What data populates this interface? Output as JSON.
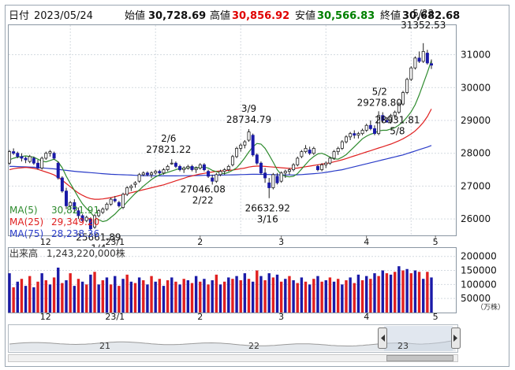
{
  "header": {
    "date_label": "日付",
    "date": "2023/05/24",
    "open_label": "始値",
    "open": "30,728.69",
    "high_label": "高値",
    "high": "30,856.92",
    "low_label": "安値",
    "low": "30,566.83",
    "close_label": "終値",
    "close": "30,682.68"
  },
  "colors": {
    "up_candle": "#ffffff",
    "down_candle": "#1a1aa8",
    "ma5": "#2e8b2e",
    "ma25": "#e02020",
    "ma75": "#2a3cc8",
    "vol_red": "#e02020",
    "vol_blue": "#1a1aa8",
    "high_value": "#e00000",
    "low_value": "#008000"
  },
  "legend": [
    {
      "label": "MA(5)",
      "value": "30,821.91",
      "color": "#2e8b2e"
    },
    {
      "label": "MA(25)",
      "value": "29,349.20",
      "color": "#e02020"
    },
    {
      "label": "MA(75)",
      "value": "28,238.36",
      "color": "#2a3cc8"
    }
  ],
  "volume_panel": {
    "title": "出来高",
    "value": "1,243,220,000株",
    "unit": "（万株）",
    "ticks": [
      "200000",
      "150000",
      "100000",
      "50000"
    ]
  },
  "x_axis_labels": [
    "12",
    "23/1",
    "2",
    "3",
    "4",
    "5"
  ],
  "navigator": {
    "labels": [
      "21",
      "22",
      "23"
    ]
  },
  "chart_data": {
    "type": "candlestick",
    "y_ticks": [
      26000,
      27000,
      28000,
      29000,
      30000,
      31000
    ],
    "ylim": [
      25500,
      31900
    ],
    "volume_ylim": [
      0,
      230000
    ],
    "annotations": [
      {
        "text": "5/23",
        "value": "31352.53"
      },
      {
        "text": "5/2",
        "value": "29278.80"
      },
      {
        "text": "5/8",
        "value": "28931.81"
      },
      {
        "text": "3/9",
        "value": "28734.79"
      },
      {
        "text": "3/16",
        "value": "26632.92"
      },
      {
        "text": "2/6",
        "value": "27821.22"
      },
      {
        "text": "2/22",
        "value": "27046.08"
      },
      {
        "text": "1/4",
        "value": "25661.89"
      }
    ],
    "candles": [
      [
        27700,
        28100,
        27650,
        28050
      ],
      [
        28050,
        28150,
        27950,
        28000
      ],
      [
        28000,
        28050,
        27850,
        27900
      ],
      [
        27900,
        28000,
        27750,
        27850
      ],
      [
        27850,
        27900,
        27700,
        27800
      ],
      [
        27750,
        27950,
        27700,
        27900
      ],
      [
        27850,
        27900,
        27650,
        27700
      ],
      [
        27700,
        27800,
        27500,
        27550
      ],
      [
        27550,
        27900,
        27500,
        27850
      ],
      [
        27850,
        28050,
        27800,
        28000
      ],
      [
        28000,
        28100,
        27900,
        28050
      ],
      [
        28000,
        28050,
        27800,
        27850
      ],
      [
        27700,
        27750,
        27200,
        27250
      ],
      [
        27250,
        27300,
        26800,
        26850
      ],
      [
        26850,
        26950,
        26300,
        26400
      ],
      [
        26400,
        26550,
        26300,
        26500
      ],
      [
        26500,
        26600,
        26200,
        26300
      ],
      [
        26250,
        26350,
        26000,
        26100
      ],
      [
        26100,
        26150,
        25900,
        25950
      ],
      [
        25950,
        26100,
        25900,
        26050
      ],
      [
        26000,
        26050,
        25650,
        25700
      ],
      [
        25750,
        26150,
        25700,
        26100
      ],
      [
        26100,
        26300,
        26050,
        26250
      ],
      [
        26200,
        26350,
        26150,
        26300
      ],
      [
        26300,
        26500,
        26250,
        26450
      ],
      [
        26450,
        26650,
        26400,
        26600
      ],
      [
        26600,
        26700,
        26500,
        26550
      ],
      [
        26500,
        26550,
        26350,
        26400
      ],
      [
        26350,
        26800,
        26300,
        26750
      ],
      [
        26750,
        27000,
        26700,
        26950
      ],
      [
        26950,
        27050,
        26850,
        27000
      ],
      [
        27050,
        27150,
        26950,
        27100
      ],
      [
        27150,
        27400,
        27100,
        27350
      ],
      [
        27350,
        27450,
        27300,
        27400
      ],
      [
        27400,
        27450,
        27300,
        27350
      ],
      [
        27350,
        27450,
        27250,
        27400
      ],
      [
        27400,
        27500,
        27350,
        27450
      ],
      [
        27450,
        27500,
        27350,
        27400
      ],
      [
        27400,
        27550,
        27350,
        27500
      ],
      [
        27500,
        27650,
        27450,
        27600
      ],
      [
        27700,
        27822,
        27650,
        27700
      ],
      [
        27700,
        27750,
        27550,
        27600
      ],
      [
        27600,
        27650,
        27450,
        27500
      ],
      [
        27500,
        27600,
        27400,
        27550
      ],
      [
        27550,
        27650,
        27500,
        27600
      ],
      [
        27600,
        27650,
        27450,
        27500
      ],
      [
        27500,
        27600,
        27400,
        27550
      ],
      [
        27550,
        27700,
        27500,
        27650
      ],
      [
        27650,
        27700,
        27450,
        27500
      ],
      [
        27450,
        27500,
        27250,
        27300
      ],
      [
        27250,
        27350,
        27046,
        27150
      ],
      [
        27150,
        27400,
        27100,
        27350
      ],
      [
        27350,
        27500,
        27300,
        27450
      ],
      [
        27450,
        27550,
        27350,
        27500
      ],
      [
        27500,
        27650,
        27450,
        27600
      ],
      [
        27650,
        27950,
        27600,
        27900
      ],
      [
        27900,
        28200,
        27850,
        28150
      ],
      [
        28150,
        28300,
        28050,
        28250
      ],
      [
        28250,
        28400,
        28150,
        28350
      ],
      [
        28400,
        28735,
        28350,
        28650
      ],
      [
        28550,
        28600,
        27900,
        27950
      ],
      [
        27950,
        28000,
        27650,
        27700
      ],
      [
        27700,
        27750,
        27350,
        27400
      ],
      [
        27400,
        27550,
        27100,
        27250
      ],
      [
        27100,
        27250,
        26633,
        26950
      ],
      [
        26950,
        27400,
        26900,
        27350
      ],
      [
        27300,
        27400,
        27050,
        27100
      ],
      [
        27150,
        27450,
        27100,
        27400
      ],
      [
        27400,
        27500,
        27250,
        27450
      ],
      [
        27450,
        27550,
        27350,
        27500
      ],
      [
        27500,
        27700,
        27450,
        27650
      ],
      [
        27650,
        27900,
        27600,
        27850
      ],
      [
        27900,
        28100,
        27850,
        28050
      ],
      [
        28050,
        28250,
        28000,
        28150
      ],
      [
        28100,
        28200,
        27950,
        28000
      ],
      [
        28000,
        28200,
        27950,
        28150
      ],
      [
        27600,
        27650,
        27450,
        27500
      ],
      [
        27500,
        27700,
        27450,
        27650
      ],
      [
        27650,
        27750,
        27550,
        27700
      ],
      [
        27700,
        27900,
        27650,
        27850
      ],
      [
        27850,
        28100,
        27800,
        28050
      ],
      [
        28050,
        28200,
        27950,
        28150
      ],
      [
        28150,
        28400,
        28100,
        28350
      ],
      [
        28350,
        28550,
        28300,
        28500
      ],
      [
        28500,
        28650,
        28400,
        28600
      ],
      [
        28600,
        28700,
        28450,
        28550
      ],
      [
        28550,
        28650,
        28450,
        28600
      ],
      [
        28600,
        28750,
        28550,
        28700
      ],
      [
        28700,
        28900,
        28650,
        28850
      ],
      [
        28850,
        29000,
        28700,
        28750
      ],
      [
        28750,
        28850,
        28550,
        28600
      ],
      [
        28600,
        29279,
        28550,
        29150
      ],
      [
        29150,
        29250,
        28950,
        29000
      ],
      [
        29000,
        29100,
        28932,
        28950
      ],
      [
        28950,
        29200,
        28900,
        29150
      ],
      [
        29150,
        29300,
        29050,
        29250
      ],
      [
        29250,
        29550,
        29200,
        29500
      ],
      [
        29500,
        29900,
        29450,
        29850
      ],
      [
        29850,
        30300,
        29800,
        30250
      ],
      [
        30250,
        30650,
        30200,
        30600
      ],
      [
        30600,
        30950,
        30550,
        30900
      ],
      [
        30900,
        31100,
        30750,
        30800
      ],
      [
        30800,
        31353,
        30750,
        31100
      ],
      [
        31050,
        31150,
        30700,
        30750
      ],
      [
        30729,
        30857,
        30567,
        30683
      ]
    ],
    "ma5": [
      27800,
      27850,
      27880,
      27900,
      27920,
      27900,
      27880,
      27820,
      27760,
      27740,
      27780,
      27820,
      27740,
      27560,
      27300,
      27080,
      26870,
      26650,
      26460,
      26320,
      26200,
      26050,
      25980,
      25920,
      25950,
      26050,
      26150,
      26280,
      26380,
      26520,
      26650,
      26780,
      26880,
      27000,
      27100,
      27200,
      27280,
      27340,
      27380,
      27420,
      27460,
      27500,
      27540,
      27540,
      27560,
      27560,
      27560,
      27570,
      27580,
      27550,
      27480,
      27440,
      27400,
      27380,
      27420,
      27480,
      27560,
      27700,
      27860,
      28040,
      28200,
      28300,
      28280,
      28150,
      27950,
      27730,
      27500,
      27350,
      27300,
      27280,
      27300,
      27380,
      27520,
      27660,
      27800,
      27900,
      27980,
      28000,
      27950,
      27880,
      27830,
      27820,
      27880,
      27960,
      28080,
      28200,
      28320,
      28440,
      28520,
      28580,
      28620,
      28680,
      28700,
      28700,
      28740,
      28780,
      28860,
      28960,
      29100,
      29260,
      29480,
      29780,
      30120,
      30460,
      30822
    ],
    "ma25": [
      27500,
      27530,
      27550,
      27560,
      27570,
      27560,
      27540,
      27510,
      27470,
      27430,
      27390,
      27340,
      27270,
      27180,
      27080,
      26980,
      26880,
      26790,
      26720,
      26660,
      26620,
      26600,
      26600,
      26610,
      26630,
      26650,
      26680,
      26710,
      26740,
      26770,
      26800,
      26830,
      26860,
      26890,
      26920,
      26950,
      26980,
      27010,
      27040,
      27080,
      27120,
      27160,
      27200,
      27240,
      27280,
      27310,
      27340,
      27370,
      27390,
      27410,
      27430,
      27450,
      27460,
      27470,
      27480,
      27490,
      27510,
      27530,
      27550,
      27580,
      27600,
      27610,
      27610,
      27600,
      27590,
      27580,
      27570,
      27560,
      27550,
      27540,
      27540,
      27550,
      27570,
      27590,
      27610,
      27630,
      27650,
      27670,
      27690,
      27710,
      27740,
      27770,
      27800,
      27840,
      27880,
      27920,
      27960,
      28000,
      28040,
      28080,
      28120,
      28160,
      28200,
      28240,
      28280,
      28330,
      28380,
      28440,
      28510,
      28590,
      28680,
      28800,
      28940,
      29120,
      29349
    ],
    "ma75": [
      27600,
      27600,
      27595,
      27590,
      27585,
      27580,
      27575,
      27565,
      27555,
      27545,
      27535,
      27525,
      27510,
      27495,
      27480,
      27465,
      27450,
      27440,
      27430,
      27420,
      27410,
      27400,
      27390,
      27380,
      27370,
      27360,
      27355,
      27350,
      27345,
      27340,
      27335,
      27330,
      27325,
      27320,
      27318,
      27316,
      27314,
      27312,
      27312,
      27312,
      27312,
      27312,
      27314,
      27316,
      27318,
      27320,
      27322,
      27325,
      27328,
      27330,
      27332,
      27334,
      27336,
      27338,
      27340,
      27343,
      27346,
      27350,
      27354,
      27358,
      27360,
      27360,
      27358,
      27356,
      27352,
      27348,
      27345,
      27342,
      27340,
      27340,
      27340,
      27345,
      27350,
      27360,
      27370,
      27380,
      27390,
      27400,
      27420,
      27440,
      27460,
      27480,
      27500,
      27530,
      27560,
      27590,
      27620,
      27650,
      27680,
      27710,
      27740,
      27770,
      27800,
      27830,
      27860,
      27890,
      27920,
      27950,
      27990,
      28030,
      28070,
      28110,
      28150,
      28190,
      28238
    ],
    "volume": [
      [
        140000,
        "b"
      ],
      [
        90000,
        "r"
      ],
      [
        110000,
        "b"
      ],
      [
        120000,
        "r"
      ],
      [
        95000,
        "b"
      ],
      [
        130000,
        "r"
      ],
      [
        90000,
        "b"
      ],
      [
        110000,
        "r"
      ],
      [
        140000,
        "b"
      ],
      [
        115000,
        "r"
      ],
      [
        100000,
        "b"
      ],
      [
        125000,
        "r"
      ],
      [
        160000,
        "b"
      ],
      [
        105000,
        "r"
      ],
      [
        115000,
        "b"
      ],
      [
        140000,
        "r"
      ],
      [
        95000,
        "b"
      ],
      [
        120000,
        "r"
      ],
      [
        110000,
        "b"
      ],
      [
        100000,
        "r"
      ],
      [
        135000,
        "b"
      ],
      [
        145000,
        "r"
      ],
      [
        100000,
        "b"
      ],
      [
        115000,
        "r"
      ],
      [
        125000,
        "b"
      ],
      [
        100000,
        "r"
      ],
      [
        130000,
        "b"
      ],
      [
        95000,
        "r"
      ],
      [
        120000,
        "b"
      ],
      [
        135000,
        "r"
      ],
      [
        110000,
        "b"
      ],
      [
        105000,
        "r"
      ],
      [
        125000,
        "b"
      ],
      [
        115000,
        "r"
      ],
      [
        100000,
        "b"
      ],
      [
        130000,
        "r"
      ],
      [
        110000,
        "b"
      ],
      [
        120000,
        "r"
      ],
      [
        95000,
        "b"
      ],
      [
        115000,
        "r"
      ],
      [
        125000,
        "b"
      ],
      [
        110000,
        "r"
      ],
      [
        100000,
        "b"
      ],
      [
        120000,
        "r"
      ],
      [
        115000,
        "b"
      ],
      [
        105000,
        "r"
      ],
      [
        130000,
        "b"
      ],
      [
        110000,
        "r"
      ],
      [
        120000,
        "b"
      ],
      [
        100000,
        "r"
      ],
      [
        115000,
        "b"
      ],
      [
        135000,
        "r"
      ],
      [
        100000,
        "b"
      ],
      [
        110000,
        "r"
      ],
      [
        125000,
        "b"
      ],
      [
        120000,
        "r"
      ],
      [
        130000,
        "b"
      ],
      [
        115000,
        "r"
      ],
      [
        140000,
        "b"
      ],
      [
        120000,
        "r"
      ],
      [
        110000,
        "b"
      ],
      [
        150000,
        "r"
      ],
      [
        130000,
        "b"
      ],
      [
        115000,
        "r"
      ],
      [
        140000,
        "b"
      ],
      [
        125000,
        "r"
      ],
      [
        135000,
        "b"
      ],
      [
        110000,
        "r"
      ],
      [
        120000,
        "b"
      ],
      [
        130000,
        "r"
      ],
      [
        115000,
        "b"
      ],
      [
        105000,
        "r"
      ],
      [
        125000,
        "b"
      ],
      [
        110000,
        "r"
      ],
      [
        100000,
        "b"
      ],
      [
        120000,
        "r"
      ],
      [
        130000,
        "b"
      ],
      [
        110000,
        "r"
      ],
      [
        115000,
        "b"
      ],
      [
        125000,
        "r"
      ],
      [
        110000,
        "b"
      ],
      [
        120000,
        "r"
      ],
      [
        100000,
        "b"
      ],
      [
        115000,
        "r"
      ],
      [
        125000,
        "b"
      ],
      [
        105000,
        "r"
      ],
      [
        135000,
        "b"
      ],
      [
        115000,
        "r"
      ],
      [
        130000,
        "b"
      ],
      [
        120000,
        "r"
      ],
      [
        140000,
        "b"
      ],
      [
        130000,
        "r"
      ],
      [
        150000,
        "b"
      ],
      [
        140000,
        "r"
      ],
      [
        135000,
        "b"
      ],
      [
        145000,
        "r"
      ],
      [
        165000,
        "b"
      ],
      [
        150000,
        "r"
      ],
      [
        155000,
        "b"
      ],
      [
        140000,
        "r"
      ],
      [
        150000,
        "b"
      ],
      [
        145000,
        "r"
      ],
      [
        120000,
        "b"
      ],
      [
        145000,
        "r"
      ],
      [
        125000,
        "b"
      ]
    ]
  }
}
